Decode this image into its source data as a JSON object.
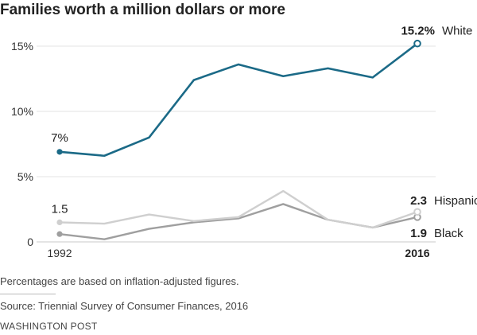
{
  "title": "Families worth a million dollars or more",
  "note": "Percentages are based on inflation-adjusted figures.",
  "source": "Source: Triennial Survey of Consumer Finances, 2016",
  "credit": "WASHINGTON POST",
  "chart_data": {
    "type": "line",
    "title": "Families worth a million dollars or more",
    "xlabel": "",
    "ylabel": "",
    "x": [
      1992,
      1995,
      1998,
      2001,
      2004,
      2007,
      2010,
      2013,
      2016
    ],
    "x_tick_labels": [
      "1992",
      "2016"
    ],
    "y_tick_labels": [
      "0",
      "5%",
      "10%",
      "15%"
    ],
    "y_ticks": [
      0,
      5,
      10,
      15
    ],
    "ylim": [
      0,
      15.5
    ],
    "grid": true,
    "legend": "none (series labelled at line ends)",
    "series": [
      {
        "name": "White",
        "color": "#1b6a87",
        "values": [
          6.9,
          6.6,
          8.0,
          12.4,
          13.6,
          12.7,
          13.3,
          12.6,
          15.2
        ],
        "start_label": "7%",
        "end_value_label": "15.2%"
      },
      {
        "name": "Hispanic",
        "color": "#cfcfcf",
        "values": [
          1.5,
          1.4,
          2.1,
          1.6,
          1.9,
          3.9,
          1.7,
          1.1,
          2.3
        ],
        "start_label": "1.5",
        "end_value_label": "2.3"
      },
      {
        "name": "Black",
        "color": "#9f9f9f",
        "values": [
          0.6,
          0.2,
          1.0,
          1.5,
          1.8,
          2.9,
          1.7,
          1.1,
          1.9
        ],
        "start_label": "",
        "end_value_label": "1.9"
      }
    ]
  }
}
